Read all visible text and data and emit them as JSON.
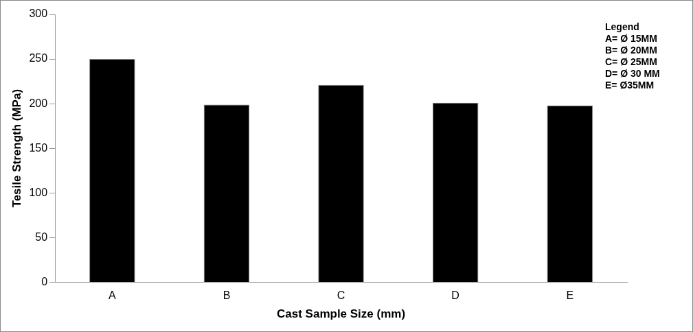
{
  "chart_data": {
    "type": "bar",
    "xlabel": "Cast Sample Size (mm)",
    "ylabel": "Tesile Strength (MPa)",
    "categories": [
      "A",
      "B",
      "C",
      "D",
      "E"
    ],
    "values": [
      250,
      199,
      221,
      201,
      198
    ],
    "color": "#000000",
    "ylim": [
      0,
      300
    ],
    "yticks": [
      0,
      50,
      100,
      150,
      200,
      250,
      300
    ],
    "grid": false,
    "legend": false,
    "annotations": [
      "Legend",
      "A= Ø 15MM",
      "B= Ø 20MM",
      "C= Ø 25MM",
      "D= Ø 30 MM",
      "E= Ø35MM"
    ]
  }
}
